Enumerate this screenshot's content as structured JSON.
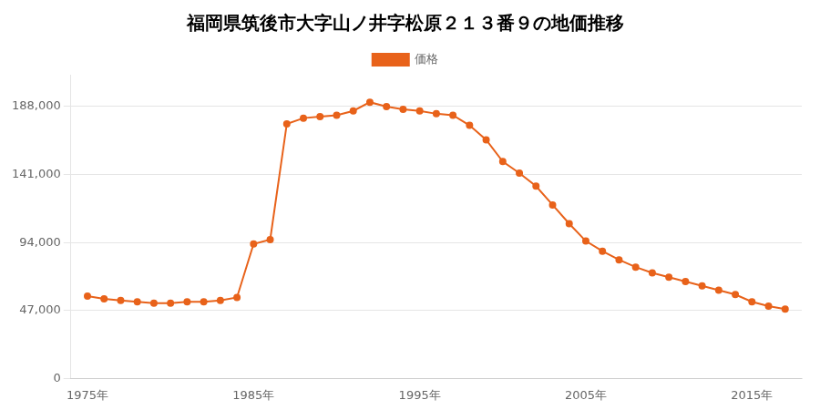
{
  "chart_data": {
    "type": "line",
    "title": "福岡県筑後市大字山ノ井字松原２１３番９の地価推移",
    "x": [
      1975,
      1976,
      1977,
      1978,
      1979,
      1980,
      1981,
      1982,
      1983,
      1984,
      1985,
      1986,
      1987,
      1988,
      1989,
      1990,
      1991,
      1992,
      1993,
      1994,
      1995,
      1996,
      1997,
      1998,
      1999,
      2000,
      2001,
      2002,
      2003,
      2004,
      2005,
      2006,
      2007,
      2008,
      2009,
      2010,
      2011,
      2012,
      2013,
      2014,
      2015,
      2016,
      2017
    ],
    "series": [
      {
        "name": "価格",
        "color": "#e8621a",
        "marker": "circle",
        "values": [
          57000,
          55000,
          54000,
          53000,
          52000,
          52000,
          53000,
          53000,
          54000,
          56000,
          93000,
          96000,
          176000,
          180000,
          181000,
          182000,
          185000,
          191000,
          188000,
          186000,
          185000,
          183000,
          182000,
          175000,
          165000,
          150000,
          142000,
          133000,
          120000,
          107000,
          95000,
          88000,
          82000,
          77000,
          73000,
          70000,
          67000,
          64000,
          61000,
          58000,
          53000,
          50000,
          48000
        ]
      }
    ],
    "xlim": [
      1974,
      2018
    ],
    "xticks": [
      {
        "value": 1975,
        "label": "1975年"
      },
      {
        "value": 1985,
        "label": "1985年"
      },
      {
        "value": 1995,
        "label": "1995年"
      },
      {
        "value": 2005,
        "label": "2005年"
      },
      {
        "value": 2015,
        "label": "2015年"
      }
    ],
    "ylim": [
      0,
      210000
    ],
    "yticks": [
      0,
      {
        "value": 47000,
        "label": "47,000"
      },
      {
        "value": 94000,
        "label": "94,000"
      },
      {
        "value": 141000,
        "label": "141,000"
      },
      {
        "value": 188000,
        "label": "188,000"
      }
    ],
    "grid": "y",
    "legend": "top"
  }
}
